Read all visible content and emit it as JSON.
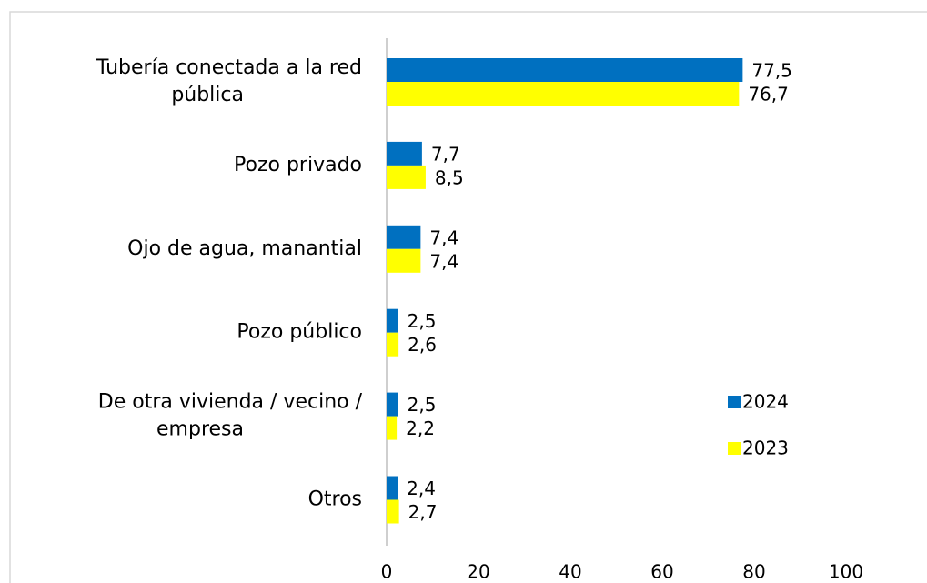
{
  "chart_data": {
    "type": "hbar",
    "categories": [
      "Tubería conectada a la red\npública",
      "Pozo privado",
      "Ojo de agua, manantial",
      "Pozo público",
      "De otra vivienda / vecino /\nempresa",
      "Otros"
    ],
    "series": [
      {
        "name": "2024",
        "color": "#0070c0",
        "values": [
          77.5,
          7.7,
          7.4,
          2.5,
          2.5,
          2.4
        ],
        "value_labels": [
          "77,5",
          "7,7",
          "7,4",
          "2,5",
          "2,5",
          "2,4"
        ]
      },
      {
        "name": "2023",
        "color": "#ffff00",
        "values": [
          76.7,
          8.5,
          7.4,
          2.6,
          2.2,
          2.7
        ],
        "value_labels": [
          "76,7",
          "8,5",
          "7,4",
          "2,6",
          "2,2",
          "2,7"
        ]
      }
    ],
    "xlim": [
      0,
      100
    ],
    "xticks": [
      0,
      20,
      40,
      60,
      80,
      100
    ],
    "grid": false
  }
}
